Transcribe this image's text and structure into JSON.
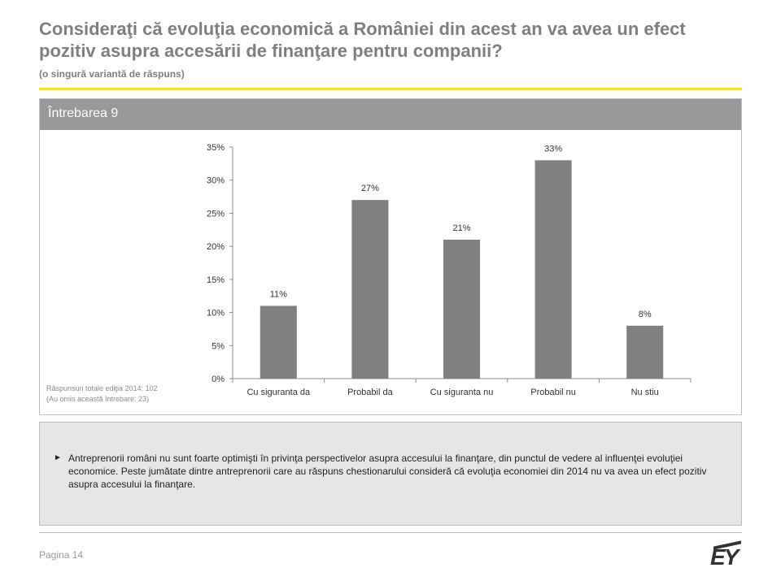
{
  "header": {
    "title": "Consideraţi că evoluţia economică a României din acest an va avea un efect pozitiv asupra accesării de finanţare pentru companii?",
    "subtitle": "(o singură variantă de răspuns)"
  },
  "panel": {
    "label": "Întrebarea 9"
  },
  "notes": {
    "total": "Răspunsuri totale ediţia 2014: 102",
    "omitted": "(Au omis această întrebare: 23)"
  },
  "chart_data": {
    "type": "bar",
    "categories": [
      "Cu siguranta da",
      "Probabil da",
      "Cu siguranta nu",
      "Probabil nu",
      "Nu stiu"
    ],
    "values": [
      11,
      27,
      21,
      33,
      8
    ],
    "value_labels": [
      "11%",
      "27%",
      "21%",
      "33%",
      "8%"
    ],
    "ylim": [
      0,
      35
    ],
    "yticks": [
      0,
      5,
      10,
      15,
      20,
      25,
      30,
      35
    ],
    "ytick_labels": [
      "0%",
      "5%",
      "10%",
      "15%",
      "20%",
      "25%",
      "30%",
      "35%"
    ],
    "grid": false,
    "bar_color": "#808080"
  },
  "commentary": {
    "bullet": "►",
    "text": "Antreprenorii români nu sunt foarte optimişti în privinţa perspectivelor asupra accesului la finanţare, din punctul de vedere al influenţei evoluţiei economice. Peste jumătate dintre antreprenorii care au răspuns chestionarului consideră că evoluţia economiei din 2014 nu va avea un efect pozitiv asupra accesului la finanţare."
  },
  "footer": {
    "page": "Pagina 14",
    "logo": "EY"
  }
}
